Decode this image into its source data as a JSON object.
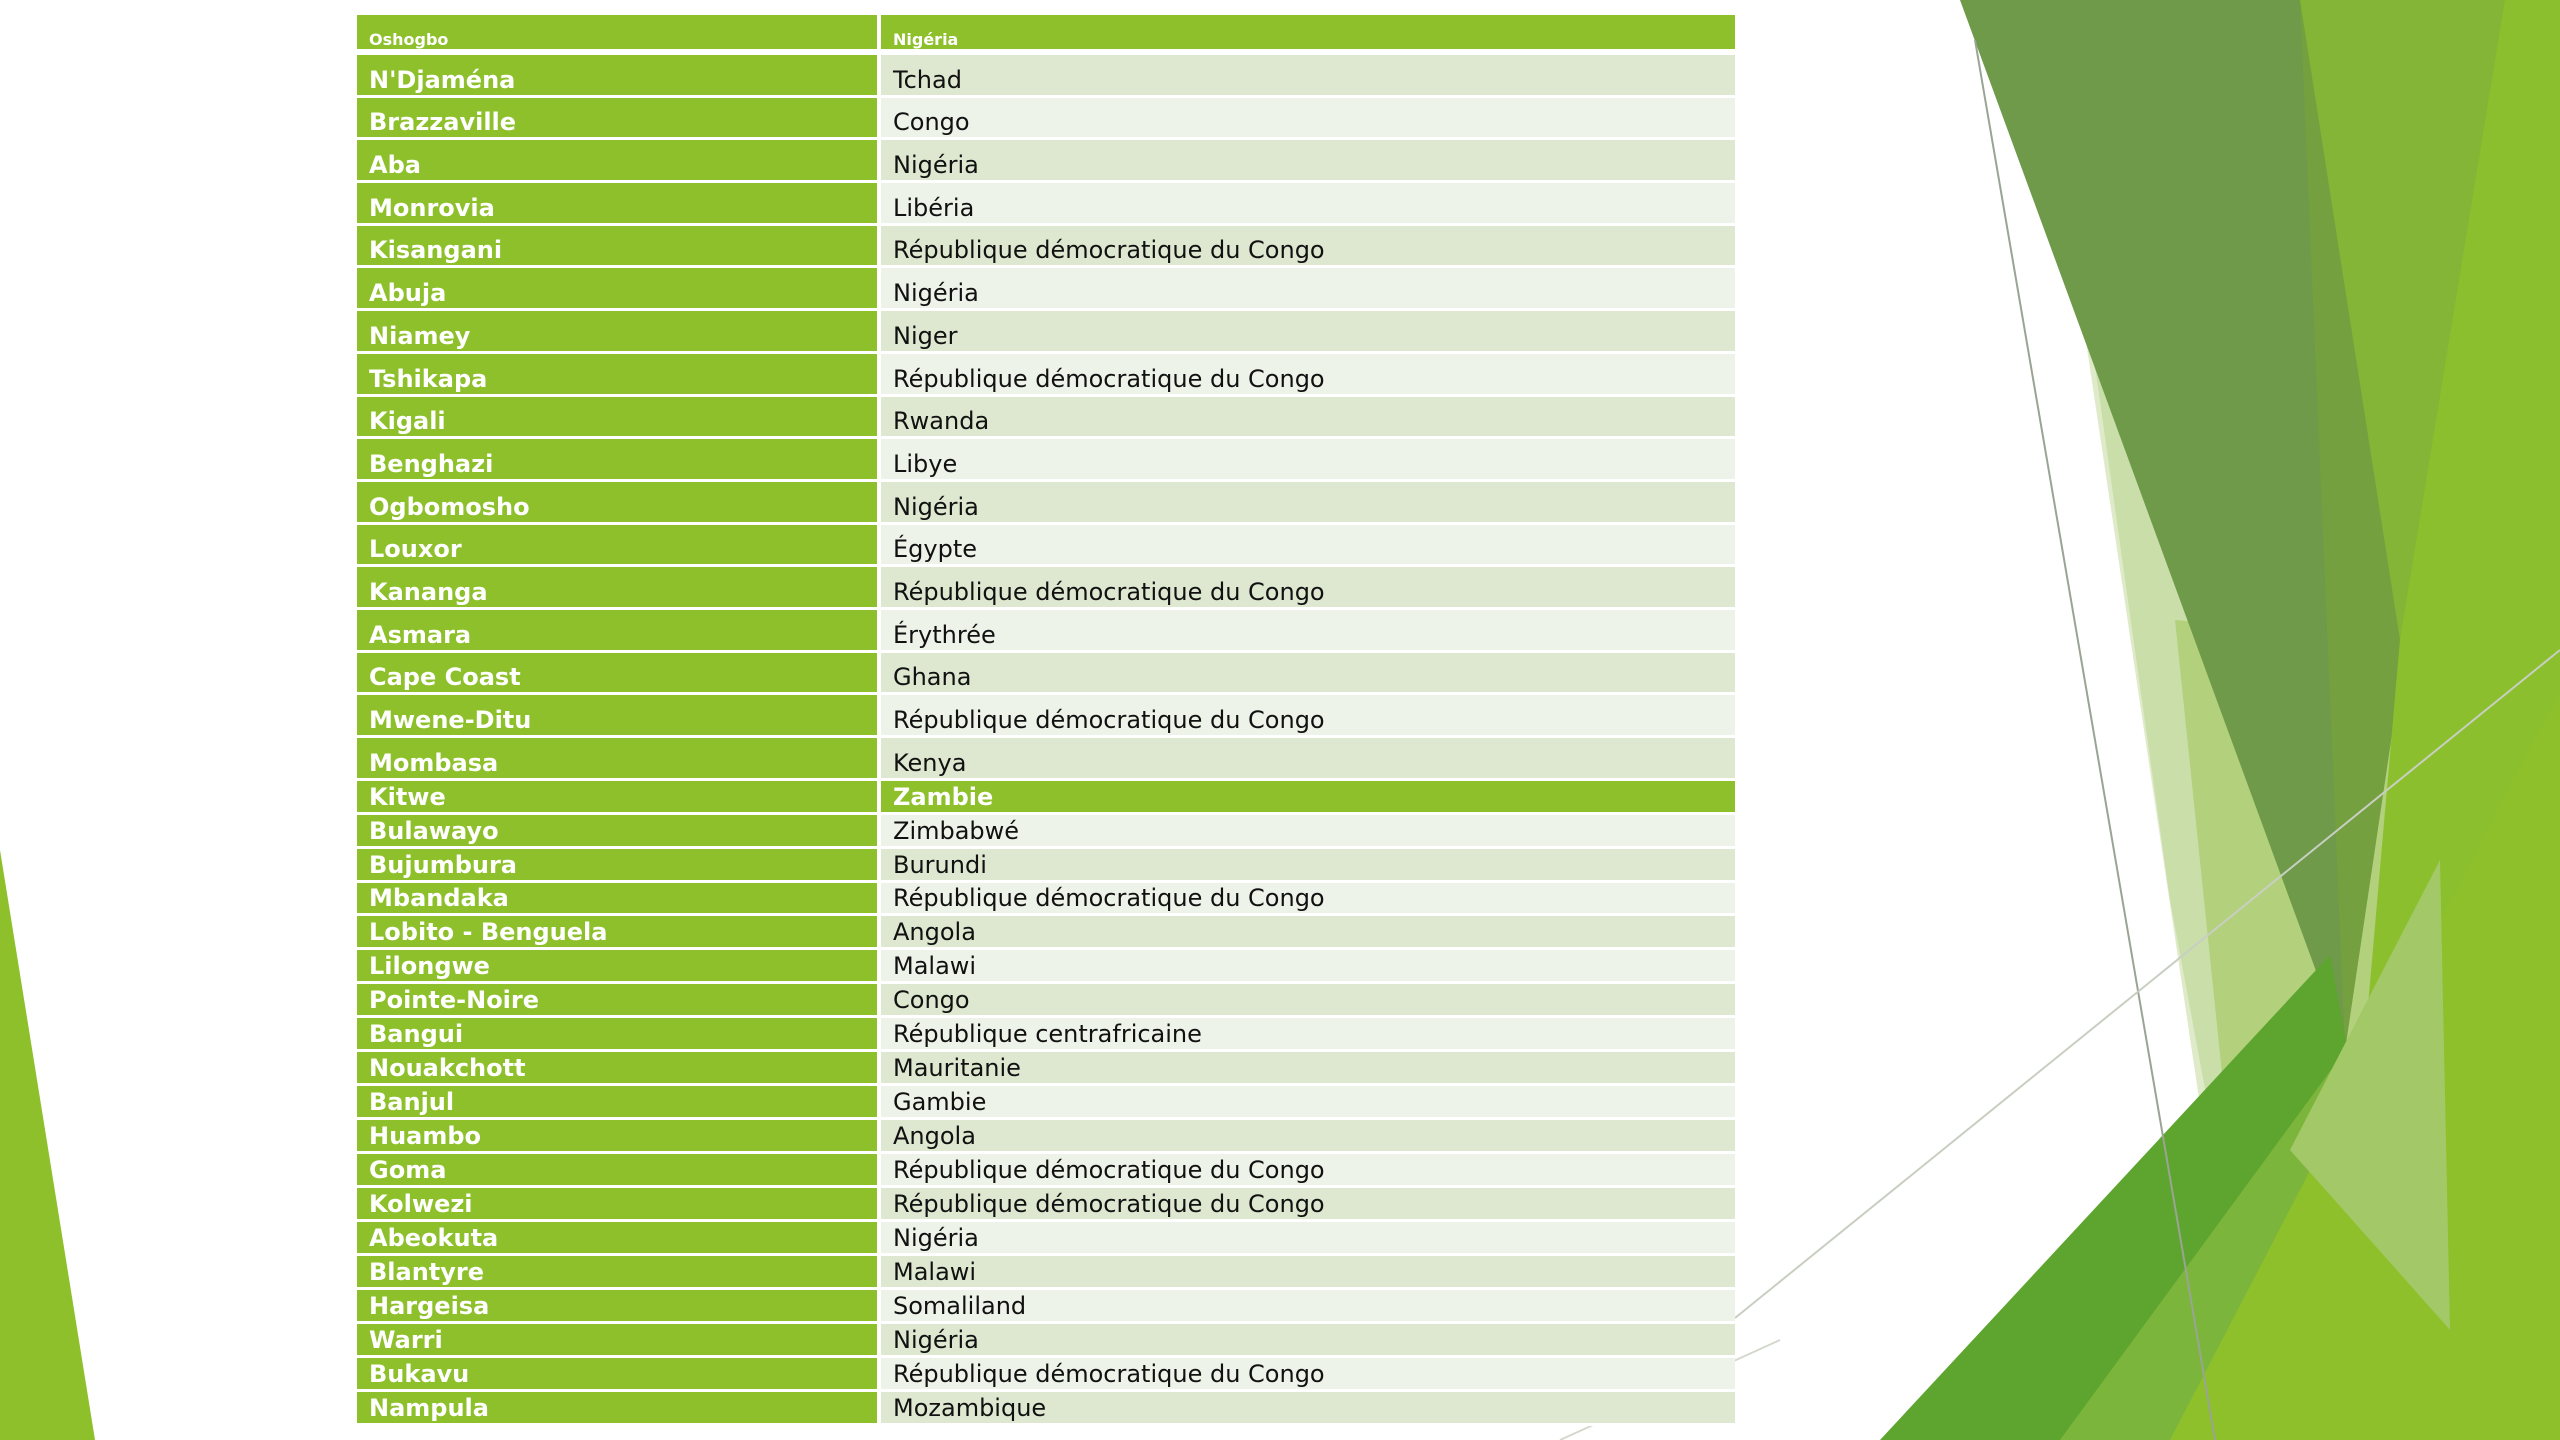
{
  "table": {
    "header": {
      "city": "Oshogbo",
      "country": "Nigéria"
    },
    "rows_tall": [
      {
        "city": "N'Djaména",
        "country": "Tchad"
      },
      {
        "city": "Brazzaville",
        "country": "Congo"
      },
      {
        "city": "Aba",
        "country": "Nigéria"
      },
      {
        "city": "Monrovia",
        "country": "Libéria"
      },
      {
        "city": "Kisangani",
        "country": "République démocratique du Congo"
      },
      {
        "city": "Abuja",
        "country": "Nigéria"
      },
      {
        "city": "Niamey",
        "country": "Niger"
      },
      {
        "city": "Tshikapa",
        "country": "République démocratique du Congo"
      },
      {
        "city": "Kigali",
        "country": "Rwanda"
      },
      {
        "city": "Benghazi",
        "country": "Libye"
      },
      {
        "city": "Ogbomosho",
        "country": "Nigéria"
      },
      {
        "city": "Louxor",
        "country": "Égypte"
      },
      {
        "city": "Kananga",
        "country": "République démocratique du Congo"
      },
      {
        "city": "Asmara",
        "country": "Érythrée"
      },
      {
        "city": "Cape Coast",
        "country": "Ghana"
      },
      {
        "city": "Mwene-Ditu",
        "country": "République démocratique du Congo"
      },
      {
        "city": "Mombasa",
        "country": "Kenya"
      }
    ],
    "highlight": {
      "city": "Kitwe",
      "country": "Zambie"
    },
    "rows_short": [
      {
        "city": "Bulawayo",
        "country": "Zimbabwé"
      },
      {
        "city": "Bujumbura",
        "country": "Burundi"
      },
      {
        "city": "Mbandaka",
        "country": "République démocratique du Congo"
      },
      {
        "city": "Lobito - Benguela",
        "country": "Angola"
      },
      {
        "city": "Lilongwe",
        "country": "Malawi"
      },
      {
        "city": "Pointe-Noire",
        "country": "Congo"
      },
      {
        "city": "Bangui",
        "country": "République centrafricaine"
      },
      {
        "city": "Nouakchott",
        "country": "Mauritanie"
      },
      {
        "city": "Banjul",
        "country": "Gambie"
      },
      {
        "city": "Huambo",
        "country": "Angola"
      },
      {
        "city": "Goma",
        "country": "République démocratique du Congo"
      },
      {
        "city": "Kolwezi",
        "country": "République démocratique du Congo"
      },
      {
        "city": "Abeokuta",
        "country": "Nigéria"
      },
      {
        "city": "Blantyre",
        "country": "Malawi"
      },
      {
        "city": "Hargeisa",
        "country": "Somaliland"
      },
      {
        "city": "Warri",
        "country": "Nigéria"
      },
      {
        "city": "Bukavu",
        "country": "République démocratique du Congo"
      },
      {
        "city": "Nampula",
        "country": "Mozambique"
      }
    ]
  },
  "colors": {
    "accent": "#8dc02a",
    "row_odd": "#dee8d0",
    "row_even": "#eef3e9"
  }
}
